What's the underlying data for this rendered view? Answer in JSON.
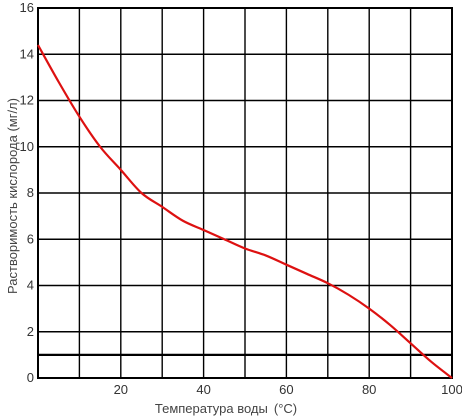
{
  "chart_data": {
    "type": "line",
    "xlabel": "Температура воды",
    "xlabel_unit": "(°С)",
    "ylabel": "Растворимость кислорода (мг/л)",
    "xlim": [
      0,
      100
    ],
    "ylim": [
      0,
      16
    ],
    "x_ticks": [
      20,
      40,
      60,
      80,
      100
    ],
    "y_ticks": [
      0,
      2,
      4,
      6,
      8,
      10,
      12,
      14,
      16
    ],
    "grid": true,
    "series_color": "#dd1111",
    "reference_line_y": 1,
    "series": [
      {
        "x": [
          0,
          5,
          10,
          15,
          20,
          25,
          30,
          35,
          40,
          45,
          50,
          55,
          60,
          65,
          70,
          75,
          80,
          85,
          90,
          95,
          100
        ],
        "values": [
          14.4,
          12.8,
          11.3,
          10.0,
          9.0,
          8.0,
          7.4,
          6.8,
          6.4,
          6.0,
          5.6,
          5.3,
          4.9,
          4.5,
          4.1,
          3.6,
          3.0,
          2.3,
          1.5,
          0.7,
          0
        ]
      }
    ]
  }
}
